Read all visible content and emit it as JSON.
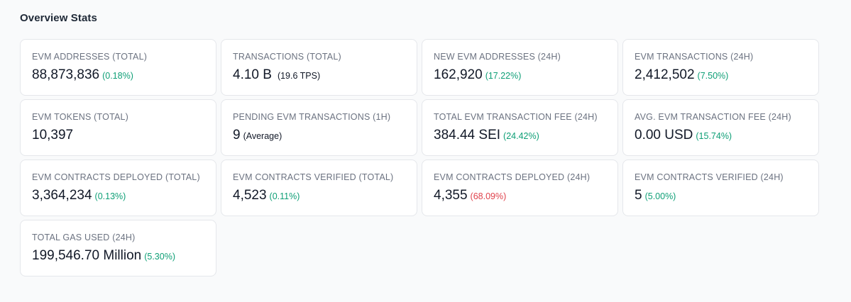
{
  "section": {
    "title": "Overview Stats"
  },
  "colors": {
    "positive": "#0e9f76",
    "negative": "#e0424c"
  },
  "cards": [
    {
      "label": "EVM ADDRESSES (TOTAL)",
      "value": "88,873,836",
      "change": "(0.18%)",
      "trend": "up",
      "note": ""
    },
    {
      "label": "TRANSACTIONS (TOTAL)",
      "value": "4.10 B",
      "change": "",
      "trend": "",
      "note": "(19.6 TPS)"
    },
    {
      "label": "NEW EVM ADDRESSES (24H)",
      "value": "162,920",
      "change": "(17.22%)",
      "trend": "up",
      "note": ""
    },
    {
      "label": "EVM TRANSACTIONS (24H)",
      "value": "2,412,502",
      "change": "(7.50%)",
      "trend": "up",
      "note": ""
    },
    {
      "label": "EVM TOKENS (TOTAL)",
      "value": "10,397",
      "change": "",
      "trend": "",
      "note": ""
    },
    {
      "label": "PENDING EVM TRANSACTIONS (1H)",
      "value": "9",
      "change": "",
      "trend": "",
      "note": "(Average)"
    },
    {
      "label": "TOTAL EVM TRANSACTION FEE (24H)",
      "value": "384.44 SEI",
      "change": "(24.42%)",
      "trend": "up",
      "note": ""
    },
    {
      "label": "AVG. EVM TRANSACTION FEE (24H)",
      "value": "0.00 USD",
      "change": "(15.74%)",
      "trend": "up",
      "note": ""
    },
    {
      "label": "EVM CONTRACTS DEPLOYED (TOTAL)",
      "value": "3,364,234",
      "change": "(0.13%)",
      "trend": "up",
      "note": ""
    },
    {
      "label": "EVM CONTRACTS VERIFIED (TOTAL)",
      "value": "4,523",
      "change": "(0.11%)",
      "trend": "up",
      "note": ""
    },
    {
      "label": "EVM CONTRACTS DEPLOYED (24H)",
      "value": "4,355",
      "change": "(68.09%)",
      "trend": "down",
      "note": ""
    },
    {
      "label": "EVM CONTRACTS VERIFIED (24H)",
      "value": "5",
      "change": "(5.00%)",
      "trend": "up",
      "note": ""
    },
    {
      "label": "TOTAL GAS USED (24H)",
      "value": "199,546.70 Million",
      "change": "(5.30%)",
      "trend": "up",
      "note": ""
    }
  ]
}
